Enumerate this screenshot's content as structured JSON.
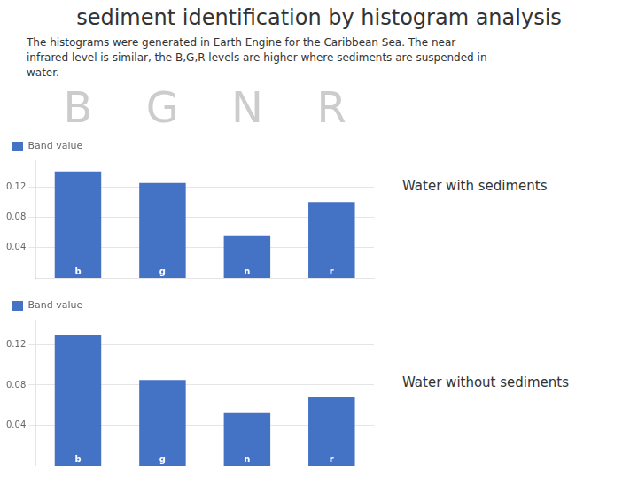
{
  "title": "sediment identification by histogram analysis",
  "subtitle": "The histograms were generated in Earth Engine for the Caribbean Sea. The near\ninfrared level is similar, the B,G,R levels are higher where sediments are suspended in\nwater.",
  "chart_data": [
    {
      "type": "bar",
      "title": "Water with sediments",
      "categories": [
        "b",
        "g",
        "n",
        "r"
      ],
      "series": [
        {
          "name": "Band value",
          "color": "#4472C4",
          "values": [
            0.14,
            0.125,
            0.055,
            0.1
          ]
        }
      ],
      "ylim": [
        0,
        0.155
      ],
      "yticks": [
        0.04,
        0.08,
        0.12
      ],
      "grid": true,
      "legend": "upper left",
      "annotations": [
        {
          "text": "B",
          "color": "#cccccc"
        },
        {
          "text": "G",
          "color": "#cccccc"
        },
        {
          "text": "N",
          "color": "#cccccc"
        },
        {
          "text": "R",
          "color": "#cccccc"
        }
      ]
    },
    {
      "type": "bar",
      "title": "Water without sediments",
      "categories": [
        "b",
        "g",
        "n",
        "r"
      ],
      "series": [
        {
          "name": "Band value",
          "color": "#4472C4",
          "values": [
            0.13,
            0.085,
            0.052,
            0.068
          ]
        }
      ],
      "ylim": [
        0,
        0.145
      ],
      "yticks": [
        0.04,
        0.08,
        0.12
      ],
      "grid": true,
      "legend": "upper left"
    }
  ]
}
